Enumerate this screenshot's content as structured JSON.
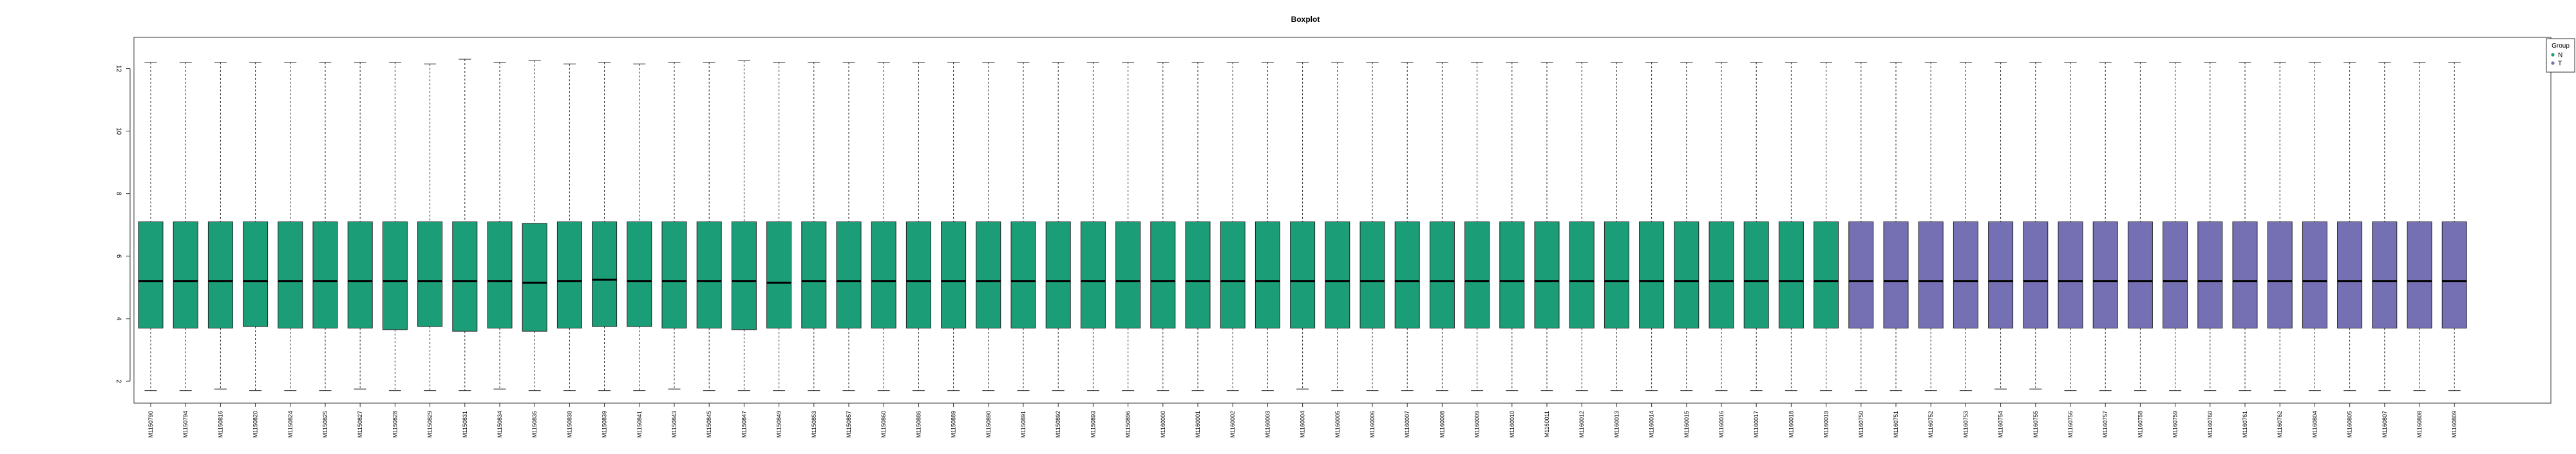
{
  "chart_data": {
    "type": "box",
    "title": "Boxplot",
    "xlabel": "",
    "ylabel": "",
    "ylim": [
      1.3,
      13.0
    ],
    "y_ticks": [
      2,
      4,
      6,
      8,
      10,
      12
    ],
    "legend": {
      "title": "Group",
      "position": "top-right",
      "entries": [
        {
          "label": "N",
          "color": "#1b9e77"
        },
        {
          "label": "T",
          "color": "#7570b3"
        }
      ]
    },
    "categories": [
      "M1150790",
      "M1150794",
      "M1150816",
      "M1150820",
      "M1150824",
      "M1150825",
      "M1150827",
      "M1150828",
      "M1150829",
      "M1150831",
      "M1150834",
      "M1150835",
      "M1150838",
      "M1150839",
      "M1150841",
      "M1150843",
      "M1150845",
      "M1150847",
      "M1150849",
      "M1150853",
      "M1150857",
      "M1150860",
      "M1150886",
      "M1150889",
      "M1150890",
      "M1150891",
      "M1150892",
      "M1150893",
      "M1150896",
      "M1160000",
      "M1160001",
      "M1160002",
      "M1160003",
      "M1160004",
      "M1160005",
      "M1160006",
      "M1160007",
      "M1160008",
      "M1160009",
      "M1160010",
      "M1160011",
      "M1160012",
      "M1160013",
      "M1160014",
      "M1160015",
      "M1160016",
      "M1160017",
      "M1160018",
      "M1160019",
      "M1160750",
      "M1160751",
      "M1160752",
      "M1160753",
      "M1160754",
      "M1160755",
      "M1160756",
      "M1160757",
      "M1160758",
      "M1160759",
      "M1160760",
      "M1160761",
      "M1160762",
      "M1160804",
      "M1160805",
      "M1160807",
      "M1160808",
      "M1160809"
    ],
    "groups": [
      "N",
      "N",
      "N",
      "N",
      "N",
      "N",
      "N",
      "N",
      "N",
      "N",
      "N",
      "N",
      "N",
      "N",
      "N",
      "N",
      "N",
      "N",
      "N",
      "N",
      "N",
      "N",
      "N",
      "N",
      "N",
      "N",
      "N",
      "N",
      "N",
      "N",
      "N",
      "N",
      "N",
      "N",
      "N",
      "N",
      "N",
      "N",
      "N",
      "N",
      "N",
      "N",
      "N",
      "N",
      "N",
      "N",
      "N",
      "N",
      "N",
      "T",
      "T",
      "T",
      "T",
      "T",
      "T",
      "T",
      "T",
      "T",
      "T",
      "T",
      "T",
      "T",
      "T",
      "T",
      "T",
      "T",
      "T"
    ],
    "box_stats": {
      "whisker_low": [
        1.7,
        1.7,
        1.75,
        1.7,
        1.7,
        1.7,
        1.75,
        1.7,
        1.7,
        1.7,
        1.75,
        1.7,
        1.7,
        1.7,
        1.7,
        1.75,
        1.7,
        1.7,
        1.7,
        1.7,
        1.7,
        1.7,
        1.7,
        1.7,
        1.7,
        1.7,
        1.7,
        1.7,
        1.7,
        1.7,
        1.7,
        1.7,
        1.7,
        1.75,
        1.7,
        1.7,
        1.7,
        1.7,
        1.7,
        1.7,
        1.7,
        1.7,
        1.7,
        1.7,
        1.7,
        1.7,
        1.7,
        1.7,
        1.7,
        1.7,
        1.7,
        1.7,
        1.7,
        1.75,
        1.75,
        1.7,
        1.7,
        1.7,
        1.7,
        1.7,
        1.7,
        1.7,
        1.7,
        1.7,
        1.7,
        1.7,
        1.7
      ],
      "q1": [
        3.7,
        3.7,
        3.7,
        3.75,
        3.7,
        3.7,
        3.7,
        3.65,
        3.75,
        3.6,
        3.7,
        3.6,
        3.7,
        3.75,
        3.75,
        3.7,
        3.7,
        3.65,
        3.7,
        3.7,
        3.7,
        3.7,
        3.7,
        3.7,
        3.7,
        3.7,
        3.7,
        3.7,
        3.7,
        3.7,
        3.7,
        3.7,
        3.7,
        3.7,
        3.7,
        3.7,
        3.7,
        3.7,
        3.7,
        3.7,
        3.7,
        3.7,
        3.7,
        3.7,
        3.7,
        3.7,
        3.7,
        3.7,
        3.7,
        3.7,
        3.7,
        3.7,
        3.7,
        3.7,
        3.7,
        3.7,
        3.7,
        3.7,
        3.7,
        3.7,
        3.7,
        3.7,
        3.7,
        3.7,
        3.7,
        3.7,
        3.7
      ],
      "median": [
        5.2,
        5.2,
        5.2,
        5.2,
        5.2,
        5.2,
        5.2,
        5.2,
        5.2,
        5.2,
        5.2,
        5.15,
        5.2,
        5.25,
        5.2,
        5.2,
        5.2,
        5.2,
        5.15,
        5.2,
        5.2,
        5.2,
        5.2,
        5.2,
        5.2,
        5.2,
        5.2,
        5.2,
        5.2,
        5.2,
        5.2,
        5.2,
        5.2,
        5.2,
        5.2,
        5.2,
        5.2,
        5.2,
        5.2,
        5.2,
        5.2,
        5.2,
        5.2,
        5.2,
        5.2,
        5.2,
        5.2,
        5.2,
        5.2,
        5.2,
        5.2,
        5.2,
        5.2,
        5.2,
        5.2,
        5.2,
        5.2,
        5.2,
        5.2,
        5.2,
        5.2,
        5.2,
        5.2,
        5.2,
        5.2,
        5.2,
        5.2
      ],
      "q3": [
        7.1,
        7.1,
        7.1,
        7.1,
        7.1,
        7.1,
        7.1,
        7.1,
        7.1,
        7.1,
        7.1,
        7.05,
        7.1,
        7.1,
        7.1,
        7.1,
        7.1,
        7.1,
        7.1,
        7.1,
        7.1,
        7.1,
        7.1,
        7.1,
        7.1,
        7.1,
        7.1,
        7.1,
        7.1,
        7.1,
        7.1,
        7.1,
        7.1,
        7.1,
        7.1,
        7.1,
        7.1,
        7.1,
        7.1,
        7.1,
        7.1,
        7.1,
        7.1,
        7.1,
        7.1,
        7.1,
        7.1,
        7.1,
        7.1,
        7.1,
        7.1,
        7.1,
        7.1,
        7.1,
        7.1,
        7.1,
        7.1,
        7.1,
        7.1,
        7.1,
        7.1,
        7.1,
        7.1,
        7.1,
        7.1,
        7.1,
        7.1
      ],
      "whisker_high": [
        12.2,
        12.2,
        12.2,
        12.2,
        12.2,
        12.2,
        12.2,
        12.2,
        12.15,
        12.3,
        12.2,
        12.25,
        12.15,
        12.2,
        12.15,
        12.2,
        12.2,
        12.25,
        12.2,
        12.2,
        12.2,
        12.2,
        12.2,
        12.2,
        12.2,
        12.2,
        12.2,
        12.2,
        12.2,
        12.2,
        12.2,
        12.2,
        12.2,
        12.2,
        12.2,
        12.2,
        12.2,
        12.2,
        12.2,
        12.2,
        12.2,
        12.2,
        12.2,
        12.2,
        12.2,
        12.2,
        12.2,
        12.2,
        12.2,
        12.2,
        12.2,
        12.2,
        12.2,
        12.2,
        12.2,
        12.2,
        12.2,
        12.2,
        12.2,
        12.2,
        12.2,
        12.2,
        12.2,
        12.2,
        12.2,
        12.2,
        12.2
      ]
    },
    "colors": {
      "N": "#1b9e77",
      "T": "#7570b3",
      "axis": "#333333"
    },
    "grid": false
  }
}
